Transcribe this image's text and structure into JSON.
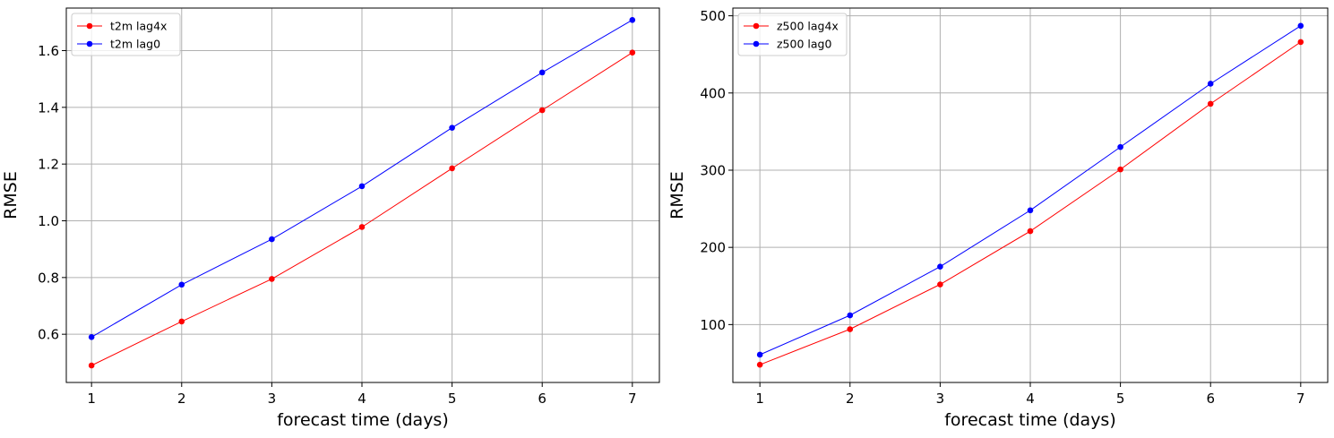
{
  "chart_data": [
    {
      "type": "line",
      "title": "",
      "xlabel": "forecast time (days)",
      "ylabel": "RMSE",
      "x": [
        1,
        2,
        3,
        4,
        5,
        6,
        7
      ],
      "xlim": [
        0.72,
        7.3
      ],
      "ylim": [
        0.43,
        1.75
      ],
      "xticks": [
        1,
        2,
        3,
        4,
        5,
        6,
        7
      ],
      "xtick_labels": [
        "1",
        "2",
        "3",
        "4",
        "5",
        "6",
        "7"
      ],
      "yticks": [
        0.6,
        0.8,
        1.0,
        1.2,
        1.4,
        1.6
      ],
      "ytick_labels": [
        "0.6",
        "0.8",
        "1.0",
        "1.2",
        "1.4",
        "1.6"
      ],
      "grid": true,
      "legend_position": "upper-left",
      "series": [
        {
          "name": "t2m lag4x",
          "color": "#ff0000",
          "values": [
            0.49,
            0.645,
            0.795,
            0.978,
            1.185,
            1.39,
            1.593
          ]
        },
        {
          "name": "t2m lag0",
          "color": "#0000ff",
          "values": [
            0.59,
            0.775,
            0.935,
            1.122,
            1.328,
            1.523,
            1.708
          ]
        }
      ]
    },
    {
      "type": "line",
      "title": "",
      "xlabel": "forecast time (days)",
      "ylabel": "RMSE",
      "x": [
        1,
        2,
        3,
        4,
        5,
        6,
        7
      ],
      "xlim": [
        0.7,
        7.3
      ],
      "ylim": [
        25,
        510
      ],
      "xticks": [
        1,
        2,
        3,
        4,
        5,
        6,
        7
      ],
      "xtick_labels": [
        "1",
        "2",
        "3",
        "4",
        "5",
        "6",
        "7"
      ],
      "yticks": [
        100,
        200,
        300,
        400,
        500
      ],
      "ytick_labels": [
        "100",
        "200",
        "300",
        "400",
        "500"
      ],
      "grid": true,
      "legend_position": "upper-left",
      "series": [
        {
          "name": "z500 lag4x",
          "color": "#ff0000",
          "values": [
            48,
            94,
            152,
            221,
            301,
            386,
            466
          ]
        },
        {
          "name": "z500 lag0",
          "color": "#0000ff",
          "values": [
            61,
            112,
            175,
            248,
            330,
            412,
            487
          ]
        }
      ]
    }
  ]
}
